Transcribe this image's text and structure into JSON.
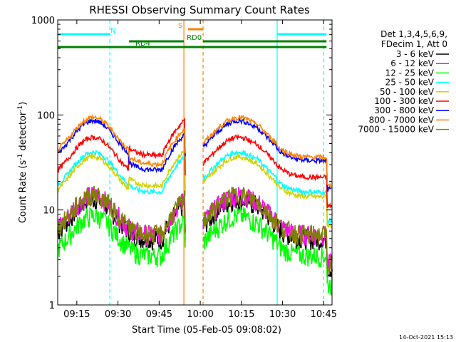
{
  "chart_data": {
    "type": "line",
    "title": "RHESSI Observing Summary Count Rates",
    "xlabel": "Start Time (05-Feb-05 09:08:02)",
    "ylabel_main": "Count Rate (s",
    "ylabel_sup1": "-1",
    "ylabel_mid": " detector",
    "ylabel_sup2": "-1",
    "ylabel_end": ")",
    "yscale": "log",
    "ylim": [
      1,
      1000
    ],
    "xlim_minutes": [
      0,
      100
    ],
    "x_ticks": [
      {
        "label": "09:15",
        "t": 6.97
      },
      {
        "label": "09:30",
        "t": 21.97
      },
      {
        "label": "09:45",
        "t": 36.97
      },
      {
        "label": "10:00",
        "t": 51.97
      },
      {
        "label": "10:15",
        "t": 66.97
      },
      {
        "label": "10:30",
        "t": 81.97
      },
      {
        "label": "10:45",
        "t": 96.97
      }
    ],
    "y_ticks": [
      {
        "label": "1",
        "v": 1
      },
      {
        "label": "10",
        "v": 10
      },
      {
        "label": "100",
        "v": 100
      },
      {
        "label": "1000",
        "v": 1000
      }
    ],
    "legend_header": [
      "Det 1,3,4,5,6,9,",
      "FDecim 1, Att 0"
    ],
    "legend_position": "right",
    "timestamp": "14-Oct-2021 15:13",
    "series": [
      {
        "name": "3 - 6 keV",
        "color": "#000000",
        "base": 9,
        "step": 0
      },
      {
        "name": "6 - 12 keV",
        "color": "#ff00ff",
        "base": 10,
        "step": 0
      },
      {
        "name": "12 - 25 keV",
        "color": "#00ff00",
        "base": 6,
        "step": 0
      },
      {
        "name": "25 - 50 keV",
        "color": "#00ffff",
        "base": 28,
        "step": 0
      },
      {
        "name": "50 - 100 keV",
        "color": "#d2d200",
        "base": 25,
        "step": 1.3
      },
      {
        "name": "100 - 300 keV",
        "color": "#ff0000",
        "base": 40,
        "step": 1.7
      },
      {
        "name": "300 - 800 keV",
        "color": "#0000ff",
        "base": 60,
        "step": 0.8
      },
      {
        "name": "800 - 7000 keV",
        "color": "#ff8000",
        "base": 65,
        "step": 0.85
      },
      {
        "name": "7000 - 15000 keV",
        "color": "#808000",
        "base": 10,
        "step": 0
      }
    ],
    "flags": [
      {
        "label": "N",
        "color": "#00ffff",
        "row": 0,
        "segments": [
          [
            0,
            19
          ],
          [
            80,
            98
          ]
        ]
      },
      {
        "label": "S",
        "color": "#ff8000",
        "row": -1,
        "segments": [
          [
            47.5,
            53
          ]
        ]
      },
      {
        "label": "RD0",
        "color": "#008000",
        "row": 1,
        "segments": [
          [
            26,
            46
          ],
          [
            53,
            98
          ]
        ]
      },
      {
        "label": "RD4",
        "color": "#008000",
        "row": 2,
        "segments": [
          [
            0,
            98
          ]
        ]
      }
    ],
    "vlines": [
      {
        "t": 19,
        "color": "#00ffff",
        "dash": true
      },
      {
        "t": 46,
        "color": "#ff8000",
        "dash": false
      },
      {
        "t": 53,
        "color": "#ff8000",
        "dash": true
      },
      {
        "t": 80,
        "color": "#00ffff",
        "dash": false
      },
      {
        "t": 97,
        "color": "#00ffff",
        "dash": true
      }
    ],
    "gaps": [
      [
        46.5,
        53
      ]
    ]
  }
}
